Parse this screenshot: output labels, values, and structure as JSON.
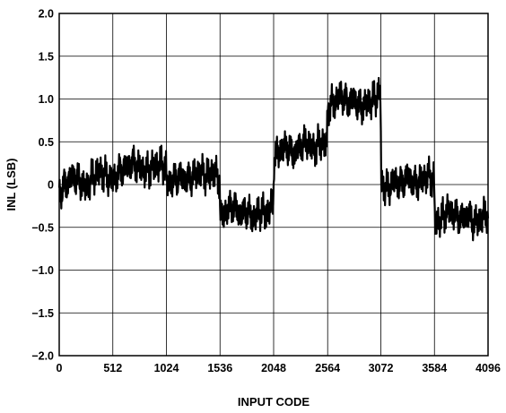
{
  "chart_data": {
    "type": "line",
    "title": "",
    "xlabel": "INPUT CODE",
    "ylabel": "INL (LSB)",
    "xlim": [
      0,
      4096
    ],
    "ylim": [
      -2.0,
      2.0
    ],
    "x_ticks": [
      0,
      512,
      1024,
      1536,
      2048,
      2564,
      3072,
      3584,
      4096
    ],
    "x_tick_labels": [
      "0",
      "512",
      "1024",
      "1536",
      "2048",
      "2564",
      "3072",
      "3584",
      "4096"
    ],
    "y_ticks": [
      2.0,
      1.5,
      1.0,
      0.5,
      0,
      -0.5,
      -1.0,
      -1.5,
      -2.0
    ],
    "y_tick_labels": [
      "2.0",
      "1.5",
      "1.0",
      "0.5",
      "0",
      "−0.5",
      "−1.0",
      "−1.5",
      "−2.0"
    ],
    "grid": true,
    "series": [
      {
        "color": "#000000",
        "x": [
          0,
          64,
          128,
          192,
          256,
          320,
          384,
          448,
          512,
          576,
          640,
          704,
          768,
          832,
          896,
          960,
          1023,
          1025,
          1088,
          1152,
          1216,
          1280,
          1344,
          1408,
          1472,
          1535,
          1537,
          1600,
          1664,
          1728,
          1792,
          1856,
          1920,
          1984,
          2047,
          2049,
          2112,
          2176,
          2240,
          2304,
          2368,
          2432,
          2496,
          2559,
          2561,
          2624,
          2688,
          2752,
          2816,
          2880,
          2944,
          3008,
          3071,
          3073,
          3136,
          3200,
          3264,
          3328,
          3392,
          3456,
          3520,
          3583,
          3585,
          3648,
          3712,
          3776,
          3840,
          3904,
          3968,
          4032,
          4096
        ],
        "values": [
          -0.1,
          0.0,
          0.1,
          0.05,
          -0.05,
          0.1,
          0.15,
          0.1,
          0.05,
          0.15,
          0.2,
          0.25,
          0.2,
          0.15,
          0.2,
          0.25,
          0.2,
          0.0,
          0.05,
          0.1,
          0.05,
          0.1,
          0.15,
          0.1,
          0.15,
          0.05,
          -0.4,
          -0.3,
          -0.25,
          -0.35,
          -0.3,
          -0.4,
          -0.3,
          -0.35,
          -0.2,
          0.3,
          0.4,
          0.45,
          0.35,
          0.45,
          0.5,
          0.4,
          0.5,
          0.45,
          0.9,
          0.95,
          1.05,
          0.95,
          1.0,
          0.9,
          0.95,
          1.0,
          1.1,
          0.0,
          -0.05,
          0.05,
          0.0,
          0.1,
          0.0,
          0.05,
          0.1,
          0.05,
          -0.45,
          -0.4,
          -0.3,
          -0.35,
          -0.4,
          -0.35,
          -0.45,
          -0.4,
          -0.3
        ]
      }
    ]
  }
}
